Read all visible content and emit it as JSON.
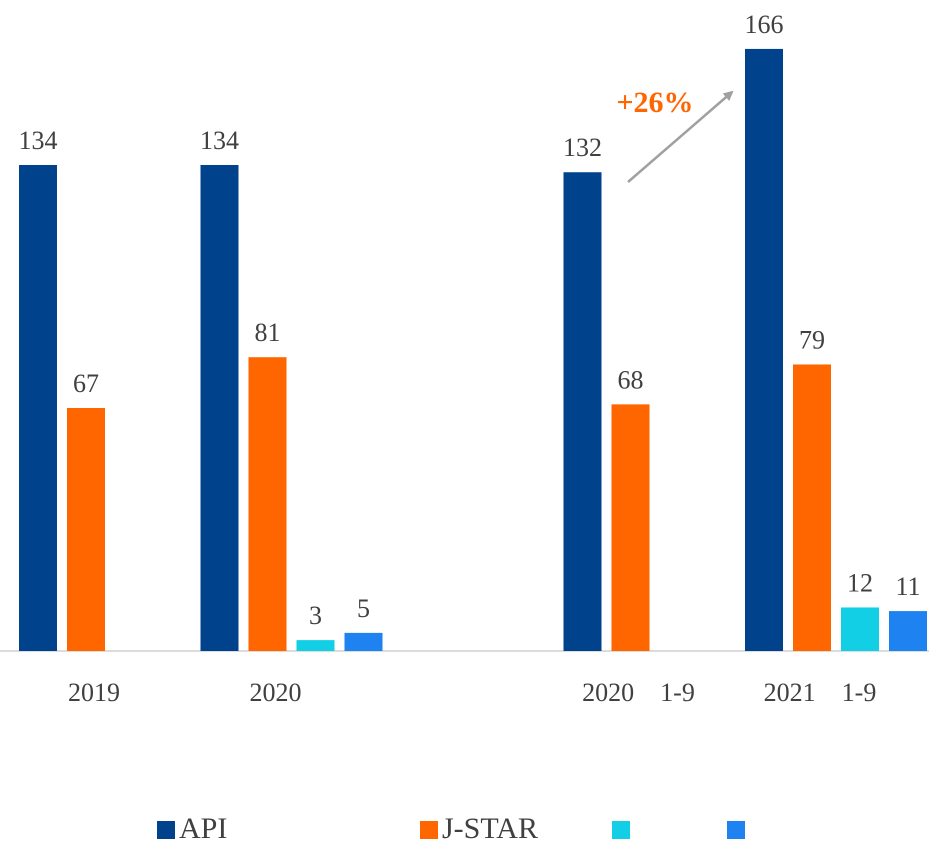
{
  "chart_data": {
    "type": "bar",
    "categories": [
      "2019",
      "2020",
      null,
      "2020　1-9",
      "2021　1-9"
    ],
    "series": [
      {
        "name": "API",
        "color": "#00428c",
        "values": [
          134,
          134,
          null,
          132,
          166
        ]
      },
      {
        "name": "J-STAR",
        "color": "#ff6600",
        "values": [
          67,
          81,
          null,
          68,
          79
        ]
      },
      {
        "name": null,
        "color": "#12cfe6",
        "values": [
          null,
          3,
          null,
          null,
          12
        ]
      },
      {
        "name": null,
        "color": "#1e82f0",
        "values": [
          null,
          5,
          null,
          null,
          11
        ]
      }
    ],
    "annotations": [
      {
        "text": "+26%",
        "color": "#ff6600"
      }
    ],
    "legend": "bottom"
  }
}
